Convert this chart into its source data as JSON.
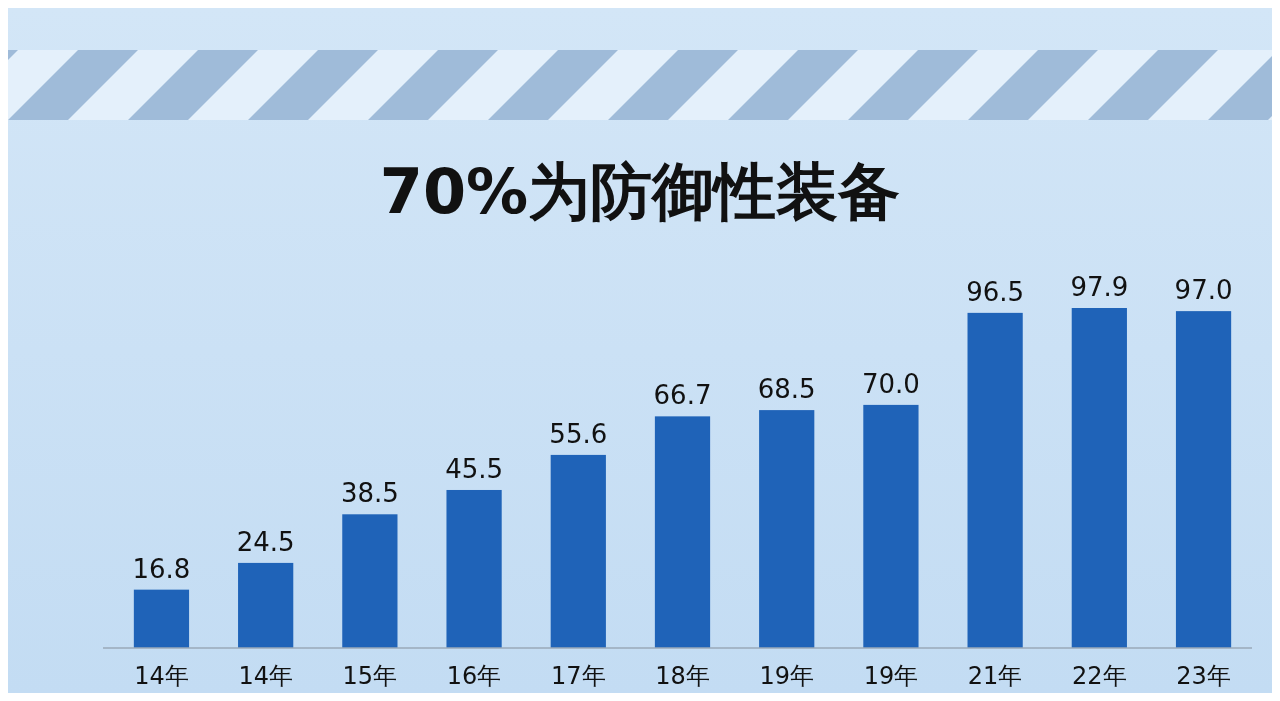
{
  "chart_data": {
    "type": "bar",
    "title": "70%为防御性装备",
    "categories": [
      "14年",
      "14年",
      "15年",
      "16年",
      "17年",
      "18年",
      "19年",
      "19年",
      "21年",
      "22年",
      "23年"
    ],
    "values": [
      16.8,
      24.5,
      38.5,
      45.5,
      55.6,
      66.7,
      68.5,
      70.0,
      96.5,
      97.9,
      97.0
    ],
    "value_labels": [
      "16.8",
      "24.5",
      "38.5",
      "45.5",
      "55.6",
      "66.7",
      "68.5",
      "70.0",
      "96.5",
      "97.9",
      "97.0"
    ],
    "color": "#1f63b8"
  }
}
